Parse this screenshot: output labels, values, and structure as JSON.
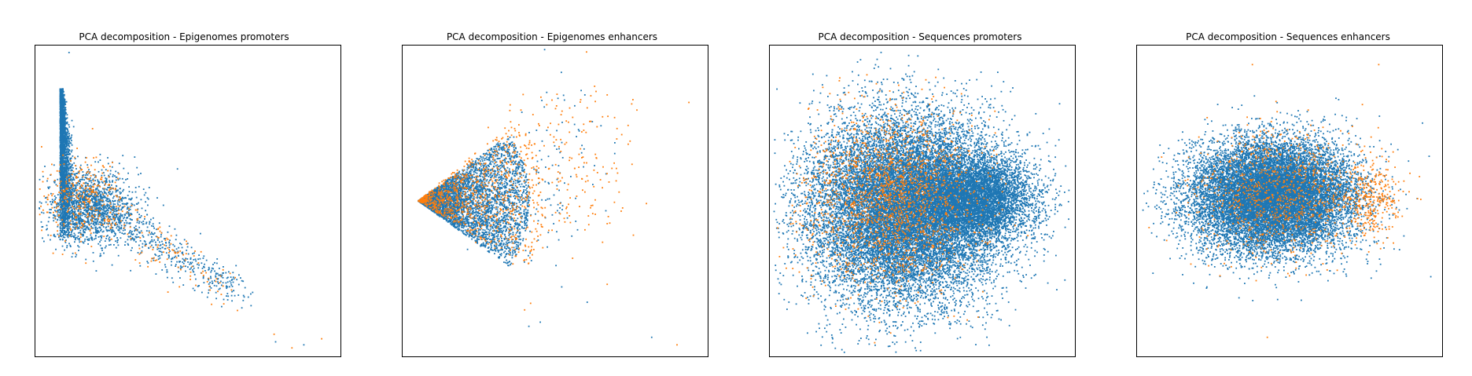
{
  "colors": {
    "series_a": "#1f77b4",
    "series_b": "#ff7f0e"
  },
  "chart_data": [
    {
      "type": "scatter",
      "title": "PCA decomposition - Epigenomes promoters",
      "xlim": [
        -1,
        1
      ],
      "ylim": [
        -1,
        1
      ],
      "axes_ticks": false,
      "grid": false,
      "legend": "none",
      "series": [
        {
          "color": "#1f77b4",
          "clusters": [
            {
              "shape": "wedge",
              "n": 2600,
              "x": -0.86,
              "y": [
                -0.26,
                0.74
              ],
              "spread": 0.06
            },
            {
              "shape": "gauss",
              "n": 1300,
              "cx": -0.65,
              "cy": -0.05,
              "sx": 0.16,
              "sy": 0.12
            },
            {
              "shape": "line",
              "n": 550,
              "x0": -0.75,
              "y0": 0.05,
              "x1": 0.35,
              "y1": -0.62,
              "noise": 0.06
            }
          ],
          "points": [
            [
              -0.8,
              0.98
            ],
            [
              0.59,
              -0.93
            ],
            [
              0.78,
              -0.95
            ]
          ]
        },
        {
          "color": "#ff7f0e",
          "clusters": [
            {
              "shape": "gauss",
              "n": 320,
              "cx": -0.72,
              "cy": 0.02,
              "sx": 0.14,
              "sy": 0.14
            },
            {
              "shape": "line",
              "n": 120,
              "x0": -0.6,
              "y0": -0.05,
              "x1": 0.3,
              "y1": -0.6,
              "noise": 0.07
            }
          ],
          "points": [
            [
              0.58,
              -0.88
            ],
            [
              0.7,
              -0.97
            ],
            [
              0.9,
              -0.91
            ]
          ]
        }
      ]
    },
    {
      "type": "scatter",
      "title": "PCA decomposition - Epigenomes enhancers",
      "xlim": [
        -1,
        1
      ],
      "ylim": [
        -1,
        1
      ],
      "axes_ticks": false,
      "grid": false,
      "legend": "none",
      "series": [
        {
          "color": "#1f77b4",
          "clusters": [
            {
              "shape": "fan",
              "n": 5000,
              "ax": -0.92,
              "ay": 0.0,
              "len": 0.75,
              "a0": -0.62,
              "a1": 0.62,
              "pow": 1.6
            },
            {
              "shape": "gauss",
              "n": 120,
              "cx": 0.0,
              "cy": 0.15,
              "sx": 0.18,
              "sy": 0.3
            }
          ],
          "points": [
            [
              -0.1,
              -0.8
            ],
            [
              0.65,
              -0.9
            ],
            [
              0.2,
              0.7
            ]
          ]
        },
        {
          "color": "#ff7f0e",
          "clusters": [
            {
              "shape": "fan",
              "n": 900,
              "ax": -0.92,
              "ay": 0.0,
              "len": 0.85,
              "a0": -0.55,
              "a1": 0.7,
              "pow": 1.3
            },
            {
              "shape": "gauss",
              "n": 180,
              "cx": 0.1,
              "cy": 0.25,
              "sx": 0.22,
              "sy": 0.3
            }
          ],
          "points": [
            [
              0.35,
              0.7
            ],
            [
              0.4,
              0.55
            ],
            [
              0.55,
              0.6
            ],
            [
              0.9,
              0.65
            ],
            [
              0.35,
              -0.55
            ],
            [
              0.82,
              -0.95
            ],
            [
              0.35,
              -0.15
            ]
          ]
        }
      ]
    },
    {
      "type": "scatter",
      "title": "PCA decomposition - Sequences promoters",
      "xlim": [
        -1,
        1
      ],
      "ylim": [
        -1,
        1
      ],
      "axes_ticks": false,
      "grid": false,
      "legend": "none",
      "series": [
        {
          "color": "#1f77b4",
          "clusters": [
            {
              "shape": "gauss",
              "n": 16000,
              "cx": -0.12,
              "cy": -0.05,
              "sx": 0.32,
              "sy": 0.3
            },
            {
              "shape": "gauss",
              "n": 5000,
              "cx": 0.35,
              "cy": 0.02,
              "sx": 0.2,
              "sy": 0.14
            }
          ],
          "points": []
        },
        {
          "color": "#ff7f0e",
          "clusters": [
            {
              "shape": "gauss",
              "n": 1800,
              "cx": -0.2,
              "cy": 0.02,
              "sx": 0.28,
              "sy": 0.28
            }
          ],
          "points": []
        }
      ]
    },
    {
      "type": "scatter",
      "title": "PCA decomposition - Sequences enhancers",
      "xlim": [
        -1,
        1
      ],
      "ylim": [
        -1,
        1
      ],
      "axes_ticks": false,
      "grid": false,
      "legend": "none",
      "series": [
        {
          "color": "#1f77b4",
          "clusters": [
            {
              "shape": "gauss",
              "n": 14000,
              "cx": -0.12,
              "cy": 0.03,
              "sx": 0.27,
              "sy": 0.18
            }
          ],
          "points": [
            [
              -0.9,
              0.05
            ],
            [
              0.95,
              -0.5
            ]
          ]
        },
        {
          "color": "#ff7f0e",
          "clusters": [
            {
              "shape": "gauss",
              "n": 900,
              "cx": -0.05,
              "cy": 0.05,
              "sx": 0.28,
              "sy": 0.2
            },
            {
              "shape": "gauss",
              "n": 300,
              "cx": 0.55,
              "cy": 0.0,
              "sx": 0.1,
              "sy": 0.12
            }
          ],
          "points": [
            [
              -0.25,
              0.9
            ],
            [
              0.6,
              0.9
            ],
            [
              -0.15,
              -0.9
            ]
          ]
        }
      ]
    }
  ]
}
